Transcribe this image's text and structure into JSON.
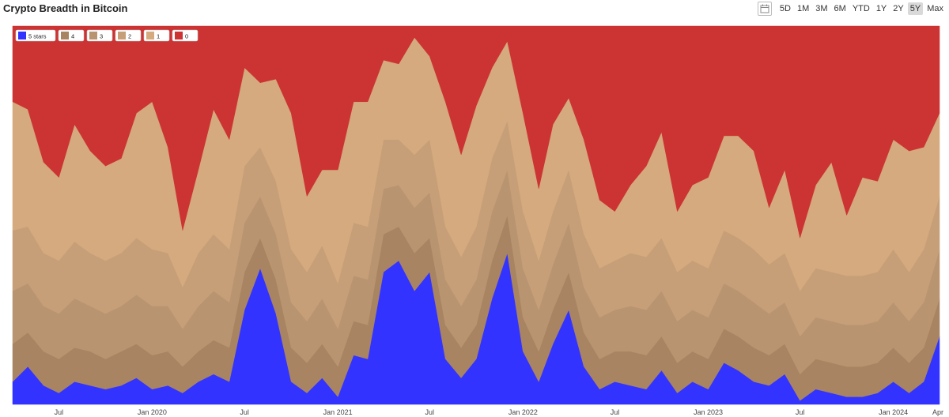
{
  "page": {
    "title": "Crypto Breadth in Bitcoin"
  },
  "toolbar": {
    "calendar_icon": "calendar-icon",
    "ranges": [
      "5D",
      "1M",
      "3M",
      "6M",
      "YTD",
      "1Y",
      "2Y",
      "5Y",
      "Max"
    ],
    "active_range": "5Y"
  },
  "chart_data": {
    "type": "area",
    "stacked": true,
    "normalized": true,
    "x_range": [
      "2019-04-01",
      "2024-04-01"
    ],
    "x_ticks": [
      {
        "label": "Jul",
        "date": "2019-07-01"
      },
      {
        "label": "Jan 2020",
        "date": "2020-01-01"
      },
      {
        "label": "Jul",
        "date": "2020-07-01"
      },
      {
        "label": "Jan 2021",
        "date": "2021-01-01"
      },
      {
        "label": "Jul",
        "date": "2021-07-01"
      },
      {
        "label": "Jan 2022",
        "date": "2022-01-01"
      },
      {
        "label": "Jul",
        "date": "2022-07-01"
      },
      {
        "label": "Jan 2023",
        "date": "2023-01-01"
      },
      {
        "label": "Jul",
        "date": "2023-07-01"
      },
      {
        "label": "Jan 2024",
        "date": "2024-01-01"
      },
      {
        "label": "Apr",
        "date": "2024-04-01"
      }
    ],
    "ylim": [
      0,
      1
    ],
    "legend_position": "top-left",
    "grid": false,
    "x": [
      "2019-04-01",
      "2019-05-01",
      "2019-06-01",
      "2019-07-01",
      "2019-08-01",
      "2019-09-01",
      "2019-10-01",
      "2019-11-01",
      "2019-12-01",
      "2020-01-01",
      "2020-02-01",
      "2020-03-01",
      "2020-04-01",
      "2020-05-01",
      "2020-06-01",
      "2020-07-01",
      "2020-08-01",
      "2020-09-01",
      "2020-10-01",
      "2020-11-01",
      "2020-12-01",
      "2021-01-01",
      "2021-02-01",
      "2021-03-01",
      "2021-04-01",
      "2021-05-01",
      "2021-06-01",
      "2021-07-01",
      "2021-08-01",
      "2021-09-01",
      "2021-10-01",
      "2021-11-01",
      "2021-12-01",
      "2022-01-01",
      "2022-02-01",
      "2022-03-01",
      "2022-04-01",
      "2022-05-01",
      "2022-06-01",
      "2022-07-01",
      "2022-08-01",
      "2022-09-01",
      "2022-10-01",
      "2022-11-01",
      "2022-12-01",
      "2023-01-01",
      "2023-02-01",
      "2023-03-01",
      "2023-04-01",
      "2023-05-01",
      "2023-06-01",
      "2023-07-01",
      "2023-08-01",
      "2023-09-01",
      "2023-10-01",
      "2023-11-01",
      "2023-12-01",
      "2024-01-01",
      "2024-02-01",
      "2024-03-01",
      "2024-04-01"
    ],
    "series": [
      {
        "name": "5 stars",
        "color": "#3333ff",
        "values": [
          0.06,
          0.1,
          0.05,
          0.03,
          0.06,
          0.05,
          0.04,
          0.05,
          0.07,
          0.04,
          0.05,
          0.03,
          0.06,
          0.08,
          0.06,
          0.25,
          0.36,
          0.24,
          0.06,
          0.03,
          0.07,
          0.02,
          0.13,
          0.12,
          0.35,
          0.38,
          0.3,
          0.35,
          0.12,
          0.07,
          0.12,
          0.28,
          0.4,
          0.14,
          0.06,
          0.16,
          0.25,
          0.1,
          0.04,
          0.06,
          0.05,
          0.04,
          0.09,
          0.03,
          0.06,
          0.04,
          0.11,
          0.09,
          0.06,
          0.05,
          0.08,
          0.01,
          0.04,
          0.03,
          0.02,
          0.02,
          0.03,
          0.06,
          0.03,
          0.06,
          0.18
        ]
      },
      {
        "name": "4",
        "color": "#a88462",
        "values": [
          0.1,
          0.09,
          0.09,
          0.09,
          0.09,
          0.09,
          0.08,
          0.09,
          0.09,
          0.09,
          0.09,
          0.07,
          0.08,
          0.09,
          0.09,
          0.1,
          0.08,
          0.09,
          0.09,
          0.08,
          0.09,
          0.08,
          0.09,
          0.09,
          0.1,
          0.09,
          0.1,
          0.09,
          0.09,
          0.08,
          0.09,
          0.1,
          0.1,
          0.09,
          0.08,
          0.09,
          0.1,
          0.09,
          0.08,
          0.08,
          0.09,
          0.09,
          0.09,
          0.08,
          0.08,
          0.08,
          0.09,
          0.09,
          0.09,
          0.08,
          0.08,
          0.07,
          0.08,
          0.08,
          0.08,
          0.08,
          0.08,
          0.09,
          0.08,
          0.09,
          0.1
        ]
      },
      {
        "name": "3",
        "color": "#b99470",
        "values": [
          0.14,
          0.13,
          0.12,
          0.12,
          0.13,
          0.12,
          0.12,
          0.12,
          0.13,
          0.13,
          0.12,
          0.1,
          0.12,
          0.13,
          0.12,
          0.13,
          0.11,
          0.12,
          0.12,
          0.11,
          0.12,
          0.1,
          0.12,
          0.12,
          0.12,
          0.11,
          0.12,
          0.12,
          0.12,
          0.11,
          0.12,
          0.13,
          0.12,
          0.13,
          0.11,
          0.12,
          0.13,
          0.12,
          0.11,
          0.11,
          0.12,
          0.12,
          0.12,
          0.11,
          0.11,
          0.11,
          0.12,
          0.12,
          0.12,
          0.11,
          0.11,
          0.1,
          0.11,
          0.11,
          0.11,
          0.11,
          0.11,
          0.12,
          0.11,
          0.12,
          0.13
        ]
      },
      {
        "name": "2",
        "color": "#c69f78",
        "values": [
          0.16,
          0.15,
          0.14,
          0.14,
          0.15,
          0.14,
          0.14,
          0.14,
          0.15,
          0.15,
          0.14,
          0.11,
          0.14,
          0.15,
          0.14,
          0.15,
          0.13,
          0.14,
          0.14,
          0.13,
          0.14,
          0.12,
          0.14,
          0.14,
          0.13,
          0.12,
          0.14,
          0.14,
          0.14,
          0.13,
          0.14,
          0.14,
          0.13,
          0.15,
          0.13,
          0.14,
          0.14,
          0.14,
          0.13,
          0.13,
          0.14,
          0.14,
          0.14,
          0.13,
          0.13,
          0.13,
          0.14,
          0.14,
          0.14,
          0.13,
          0.13,
          0.12,
          0.13,
          0.13,
          0.13,
          0.13,
          0.13,
          0.14,
          0.13,
          0.14,
          0.14
        ]
      },
      {
        "name": "1",
        "color": "#d4aa7e",
        "values": [
          0.34,
          0.31,
          0.24,
          0.22,
          0.31,
          0.27,
          0.25,
          0.25,
          0.33,
          0.39,
          0.28,
          0.15,
          0.22,
          0.33,
          0.29,
          0.26,
          0.17,
          0.27,
          0.36,
          0.2,
          0.2,
          0.3,
          0.32,
          0.33,
          0.21,
          0.2,
          0.31,
          0.22,
          0.33,
          0.27,
          0.32,
          0.24,
          0.21,
          0.26,
          0.19,
          0.23,
          0.19,
          0.25,
          0.18,
          0.13,
          0.18,
          0.24,
          0.28,
          0.16,
          0.2,
          0.24,
          0.25,
          0.27,
          0.26,
          0.15,
          0.22,
          0.14,
          0.22,
          0.29,
          0.16,
          0.26,
          0.24,
          0.29,
          0.32,
          0.27,
          0.22
        ]
      },
      {
        "name": "0",
        "color": "#cc3333",
        "values": [
          0.2,
          0.22,
          0.36,
          0.4,
          0.26,
          0.33,
          0.37,
          0.35,
          0.23,
          0.2,
          0.32,
          0.54,
          0.38,
          0.22,
          0.3,
          0.11,
          0.15,
          0.14,
          0.23,
          0.45,
          0.38,
          0.38,
          0.2,
          0.2,
          0.09,
          0.1,
          0.03,
          0.08,
          0.2,
          0.34,
          0.21,
          0.11,
          0.04,
          0.23,
          0.43,
          0.26,
          0.19,
          0.3,
          0.46,
          0.49,
          0.42,
          0.37,
          0.28,
          0.49,
          0.42,
          0.4,
          0.29,
          0.29,
          0.33,
          0.48,
          0.38,
          0.56,
          0.42,
          0.36,
          0.5,
          0.4,
          0.41,
          0.3,
          0.33,
          0.32,
          0.23
        ]
      }
    ]
  }
}
